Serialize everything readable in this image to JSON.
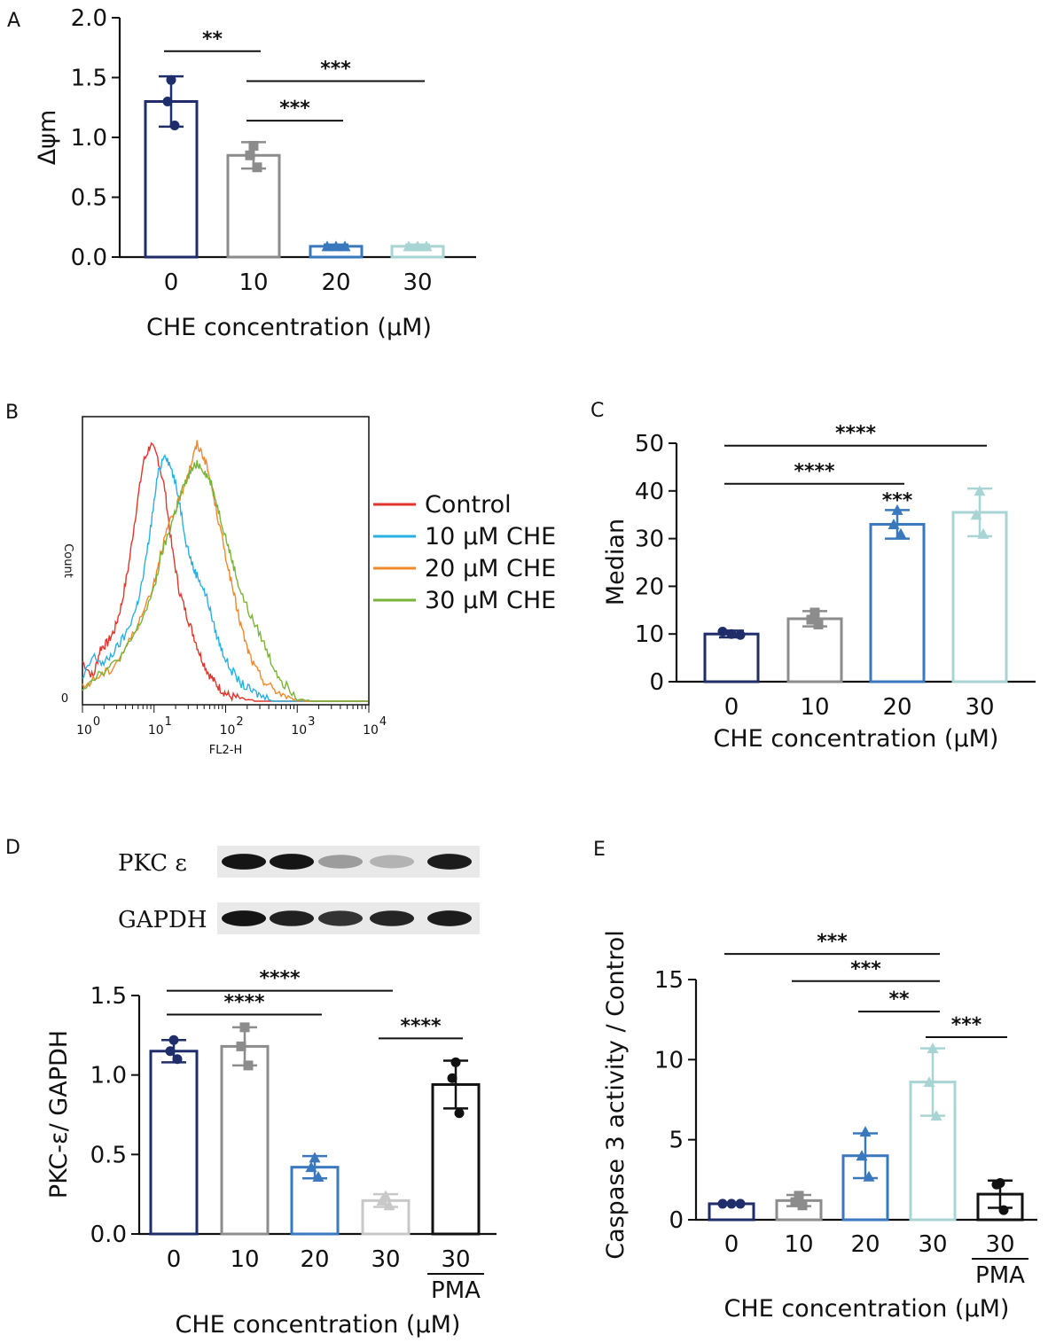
{
  "chart_data": [
    {
      "id": "A",
      "panel_label": "A",
      "type": "bar",
      "categories": [
        "0",
        "10",
        "20",
        "30"
      ],
      "values": [
        1.3,
        0.85,
        0.09,
        0.09
      ],
      "errors": [
        0.21,
        0.11,
        0.015,
        0.015
      ],
      "points": [
        [
          1.48,
          1.3,
          1.1
        ],
        [
          0.93,
          0.85,
          0.75
        ],
        [
          0.09,
          0.09,
          0.09
        ],
        [
          0.09,
          0.09,
          0.09
        ]
      ],
      "marker": [
        "circle",
        "square",
        "triangle",
        "triangle"
      ],
      "colors": [
        "#1f2e6a",
        "#8c8c8c",
        "#3a78be",
        "#a9d4d4"
      ],
      "ylabel": "Δψm",
      "xlabel": "CHE concentration (μM)",
      "ylim": [
        0,
        2.0
      ],
      "yticks": [
        "0.0",
        "0.5",
        "1.0",
        "1.5",
        "2.0"
      ],
      "significance": [
        {
          "from": 0,
          "to": 1,
          "y": 1.72,
          "label": "**"
        },
        {
          "from": 1,
          "to": 3,
          "y": 1.47,
          "label": "***"
        },
        {
          "from": 1,
          "to": 2,
          "y": 1.14,
          "label": "***"
        }
      ]
    },
    {
      "id": "B",
      "panel_label": "B",
      "type": "line",
      "title": "",
      "xlabel": "FL2-H",
      "ylabel": "Count",
      "y_zero_label": "0",
      "x_scale": "log",
      "xlim": [
        0,
        4
      ],
      "xticks": [
        {
          "base": "10",
          "exp": "0"
        },
        {
          "base": "10",
          "exp": "1"
        },
        {
          "base": "10",
          "exp": "2"
        },
        {
          "base": "10",
          "exp": "3"
        },
        {
          "base": "10",
          "exp": "4"
        }
      ],
      "series": [
        {
          "name": "Control",
          "color": "#e0362c",
          "x": [
            0.0,
            0.15,
            0.25,
            0.35,
            0.45,
            0.55,
            0.65,
            0.75,
            0.85,
            0.95,
            1.05,
            1.15,
            1.25,
            1.35,
            1.45,
            1.55,
            1.65,
            1.75,
            1.85,
            1.95,
            2.05,
            2.2,
            2.4
          ],
          "y": [
            0.15,
            0.09,
            0.2,
            0.22,
            0.27,
            0.37,
            0.52,
            0.72,
            0.9,
            0.97,
            0.92,
            0.8,
            0.58,
            0.42,
            0.33,
            0.25,
            0.17,
            0.11,
            0.07,
            0.04,
            0.02,
            0.01,
            0.0
          ]
        },
        {
          "name": "10 μM CHE",
          "color": "#2ab0e0",
          "x": [
            0.0,
            0.15,
            0.3,
            0.45,
            0.6,
            0.75,
            0.85,
            0.95,
            1.05,
            1.15,
            1.25,
            1.35,
            1.45,
            1.55,
            1.65,
            1.75,
            1.85,
            1.95,
            2.05,
            2.2,
            2.35,
            2.5,
            2.7
          ],
          "y": [
            0.08,
            0.17,
            0.14,
            0.19,
            0.25,
            0.35,
            0.47,
            0.65,
            0.85,
            0.94,
            0.87,
            0.76,
            0.6,
            0.5,
            0.45,
            0.38,
            0.27,
            0.19,
            0.13,
            0.07,
            0.04,
            0.02,
            0.0
          ]
        },
        {
          "name": "20 μM CHE",
          "color": "#f0892b",
          "x": [
            0.0,
            0.2,
            0.4,
            0.6,
            0.8,
            1.0,
            1.1,
            1.2,
            1.3,
            1.4,
            1.5,
            1.6,
            1.7,
            1.8,
            1.9,
            2.0,
            2.1,
            2.2,
            2.3,
            2.4,
            2.55,
            2.7,
            2.9,
            3.1
          ],
          "y": [
            0.05,
            0.09,
            0.12,
            0.2,
            0.3,
            0.45,
            0.57,
            0.66,
            0.72,
            0.8,
            0.88,
            0.97,
            0.92,
            0.82,
            0.68,
            0.55,
            0.42,
            0.3,
            0.2,
            0.13,
            0.07,
            0.04,
            0.01,
            0.0
          ]
        },
        {
          "name": "30 μM CHE",
          "color": "#7ab33a",
          "x": [
            0.0,
            0.2,
            0.4,
            0.6,
            0.8,
            1.0,
            1.1,
            1.2,
            1.3,
            1.4,
            1.5,
            1.6,
            1.7,
            1.8,
            1.9,
            2.0,
            2.1,
            2.2,
            2.35,
            2.5,
            2.65,
            2.8,
            3.0,
            3.2
          ],
          "y": [
            0.05,
            0.1,
            0.13,
            0.19,
            0.29,
            0.42,
            0.55,
            0.63,
            0.72,
            0.8,
            0.86,
            0.9,
            0.87,
            0.82,
            0.72,
            0.62,
            0.52,
            0.42,
            0.32,
            0.24,
            0.14,
            0.07,
            0.02,
            0.0
          ]
        }
      ]
    },
    {
      "id": "C",
      "panel_label": "C",
      "type": "bar",
      "categories": [
        "0",
        "10",
        "20",
        "30"
      ],
      "values": [
        10.0,
        13.2,
        33.0,
        35.5
      ],
      "errors": [
        0.7,
        1.6,
        3.0,
        5.0
      ],
      "points": [
        [
          10.5,
          10.0,
          9.8
        ],
        [
          14.5,
          13.0,
          12.0
        ],
        [
          36.0,
          33.0,
          31.0
        ],
        [
          40.0,
          35.0,
          31.0
        ]
      ],
      "marker": [
        "circle",
        "square",
        "triangle",
        "triangle"
      ],
      "colors": [
        "#1f2e6a",
        "#8c8c8c",
        "#3a78be",
        "#a9d4d4"
      ],
      "ylabel": "Median",
      "xlabel": "CHE concentration (μM)",
      "ylim": [
        0,
        50
      ],
      "yticks": [
        "0",
        "10",
        "20",
        "30",
        "40",
        "50"
      ],
      "significance": [
        {
          "from": 0,
          "to": 3,
          "y": 49.5,
          "label": "****"
        },
        {
          "from": 0,
          "to": 2,
          "y": 41.5,
          "label": "****"
        }
      ],
      "bar_annotations": [
        {
          "index": 2,
          "label": "***"
        }
      ]
    },
    {
      "id": "D",
      "panel_label": "D",
      "type": "bar",
      "categories": [
        "0",
        "10",
        "20",
        "30",
        "30"
      ],
      "sublabels": [
        "",
        "",
        "",
        "",
        "PMA"
      ],
      "values": [
        1.15,
        1.18,
        0.42,
        0.21,
        0.94
      ],
      "errors": [
        0.07,
        0.12,
        0.07,
        0.04,
        0.15
      ],
      "points": [
        [
          1.22,
          1.15,
          1.1
        ],
        [
          1.3,
          1.18,
          1.06
        ],
        [
          0.48,
          0.42,
          0.36
        ],
        [
          0.24,
          0.21,
          0.18
        ],
        [
          1.08,
          0.98,
          0.76
        ]
      ],
      "marker": [
        "circle",
        "square",
        "triangle",
        "triangle",
        "circle"
      ],
      "colors": [
        "#1f2e6a",
        "#8c8c8c",
        "#3a78be",
        "#c8c8c8",
        "#111111"
      ],
      "ylabel": "PKC-ε/ GAPDH",
      "xlabel": "CHE concentration (μM)",
      "ylim": [
        0,
        1.5
      ],
      "yticks": [
        "0.0",
        "0.5",
        "1.0",
        "1.5"
      ],
      "significance": [
        {
          "from": 0,
          "to": 3,
          "y": 1.53,
          "label": "****"
        },
        {
          "from": 0,
          "to": 2,
          "y": 1.38,
          "label": "****"
        },
        {
          "from": 3,
          "to": 4,
          "y": 1.23,
          "label": "****"
        }
      ],
      "blot": {
        "rows": [
          {
            "label": "PKC ε",
            "intensity": [
              0.95,
              0.95,
              0.35,
              0.25,
              0.92
            ]
          },
          {
            "label": "GAPDH",
            "intensity": [
              0.95,
              0.9,
              0.82,
              0.88,
              0.92
            ]
          }
        ]
      }
    },
    {
      "id": "E",
      "panel_label": "E",
      "type": "bar",
      "categories": [
        "0",
        "10",
        "20",
        "30",
        "30"
      ],
      "sublabels": [
        "",
        "",
        "",
        "",
        "PMA"
      ],
      "values": [
        1.0,
        1.2,
        4.0,
        8.6,
        1.6
      ],
      "errors": [
        0.05,
        0.35,
        1.4,
        2.1,
        0.85
      ],
      "points": [
        [
          1.0,
          1.0,
          1.0
        ],
        [
          1.5,
          1.1,
          0.9
        ],
        [
          5.5,
          4.0,
          2.7
        ],
        [
          10.7,
          8.6,
          6.5
        ],
        [
          2.3,
          2.2,
          0.6
        ]
      ],
      "marker": [
        "circle",
        "square",
        "triangle",
        "triangle",
        "circle"
      ],
      "colors": [
        "#1f2e6a",
        "#8c8c8c",
        "#3a78be",
        "#a9d4d4",
        "#111111"
      ],
      "ylabel": "Caspase 3 activity / Control",
      "xlabel": "CHE concentration (μM)",
      "ylim": [
        0,
        15
      ],
      "yticks": [
        "0",
        "5",
        "10",
        "15"
      ],
      "significance": [
        {
          "from": 0,
          "to": 3,
          "y": 16.6,
          "label": "***"
        },
        {
          "from": 1,
          "to": 3,
          "y": 14.9,
          "label": "***"
        },
        {
          "from": 2,
          "to": 3,
          "y": 13.0,
          "label": "**"
        },
        {
          "from": 3,
          "to": 4,
          "y": 11.4,
          "label": "***"
        }
      ]
    }
  ]
}
